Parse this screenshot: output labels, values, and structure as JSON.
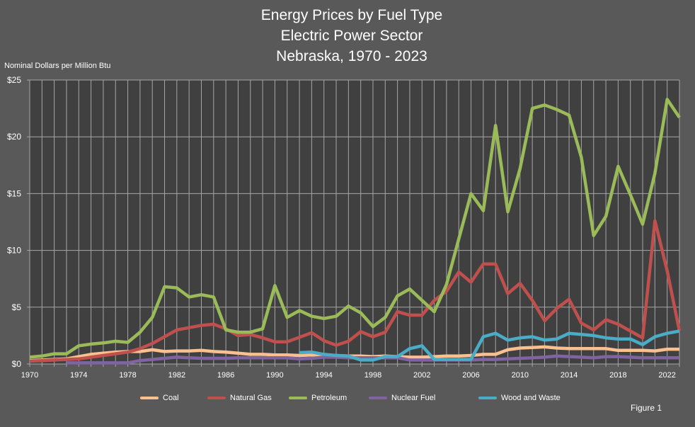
{
  "chart_data": {
    "type": "line",
    "title": [
      "Energy Prices by Fuel Type",
      "Electric Power Sector",
      "Nebraska, 1970 - 2023"
    ],
    "ylabel": "Nominal Dollars per Million Btu",
    "xlabel": "",
    "ylim": [
      0,
      25
    ],
    "yticks": [
      0,
      5,
      10,
      15,
      20,
      25
    ],
    "ytick_labels": [
      "$0",
      "$5",
      "$10",
      "$15",
      "$20",
      "$25"
    ],
    "xlim": [
      1970,
      2023
    ],
    "xtick_labels": [
      "1970",
      "1974",
      "1978",
      "1982",
      "1986",
      "1990",
      "1994",
      "1998",
      "2002",
      "2006",
      "2010",
      "2014",
      "2018",
      "2022"
    ],
    "grid": true,
    "legend_placement": "bottom",
    "series": [
      {
        "name": "Coal",
        "color": "#fac090",
        "start": 1970,
        "values": [
          0.3,
          0.35,
          0.4,
          0.45,
          0.65,
          0.85,
          0.95,
          1.05,
          1.1,
          1.1,
          1.25,
          1.1,
          1.15,
          1.15,
          1.2,
          1.1,
          1.05,
          0.95,
          0.85,
          0.85,
          0.8,
          0.8,
          0.75,
          0.8,
          0.75,
          0.75,
          0.7,
          0.7,
          0.65,
          0.7,
          0.65,
          0.6,
          0.6,
          0.65,
          0.7,
          0.7,
          0.75,
          0.85,
          0.85,
          1.25,
          1.4,
          1.45,
          1.5,
          1.4,
          1.35,
          1.35,
          1.35,
          1.35,
          1.2,
          1.2,
          1.2,
          1.15,
          1.3,
          1.3
        ]
      },
      {
        "name": "Natural Gas",
        "color": "#c0504d",
        "start": 1970,
        "values": [
          0.25,
          0.3,
          0.35,
          0.4,
          0.45,
          0.6,
          0.75,
          0.9,
          1.05,
          1.35,
          1.8,
          2.4,
          3.0,
          3.2,
          3.4,
          3.5,
          3.1,
          2.5,
          2.6,
          2.3,
          1.95,
          1.95,
          2.35,
          2.75,
          2.05,
          1.65,
          2.0,
          2.85,
          2.4,
          2.8,
          4.6,
          4.3,
          4.3,
          5.6,
          6.4,
          8.1,
          7.2,
          8.8,
          8.8,
          6.2,
          7.1,
          5.6,
          3.8,
          4.9,
          5.7,
          3.6,
          3.0,
          3.9,
          3.5,
          2.9,
          2.3,
          12.6,
          8.2,
          2.9
        ]
      },
      {
        "name": "Petroleum",
        "color": "#9bbb59",
        "start": 1970,
        "values": [
          0.6,
          0.7,
          0.9,
          0.9,
          1.6,
          1.75,
          1.85,
          2.0,
          1.9,
          2.8,
          4.1,
          6.8,
          6.7,
          5.9,
          6.1,
          5.9,
          3.0,
          2.8,
          2.8,
          3.1,
          6.9,
          4.1,
          4.7,
          4.2,
          4.0,
          4.2,
          5.1,
          4.5,
          3.3,
          4.1,
          6.0,
          6.6,
          5.6,
          4.6,
          7.0,
          11.0,
          15.0,
          13.5,
          21.0,
          13.4,
          17.2,
          22.5,
          22.8,
          22.4,
          21.9,
          18.2,
          11.3,
          13.0,
          17.4,
          14.9,
          12.3,
          16.8,
          23.3,
          21.7
        ]
      },
      {
        "name": "Nuclear Fuel",
        "color": "#8064a2",
        "start": 1973,
        "values": [
          0.1,
          0.1,
          0.1,
          0.1,
          0.1,
          0.1,
          0.3,
          0.4,
          0.5,
          0.6,
          0.55,
          0.5,
          0.5,
          0.5,
          0.55,
          0.55,
          0.55,
          0.55,
          0.55,
          0.45,
          0.5,
          0.6,
          0.6,
          0.55,
          0.55,
          0.55,
          0.55,
          0.55,
          0.35,
          0.35,
          0.35,
          0.35,
          0.35,
          0.35,
          0.4,
          0.4,
          0.45,
          0.5,
          0.55,
          0.6,
          0.7,
          0.65,
          0.6,
          0.55,
          0.65,
          0.65,
          0.6,
          0.55,
          0.55,
          0.55,
          0.55
        ]
      },
      {
        "name": "Wood and Waste",
        "color": "#4bacc6",
        "start": 1992,
        "values": [
          1.0,
          1.05,
          0.85,
          0.75,
          0.7,
          0.35,
          0.35,
          0.65,
          0.65,
          1.35,
          1.6,
          0.4,
          0.4,
          0.4,
          0.4,
          2.4,
          2.7,
          2.1,
          2.3,
          2.4,
          2.1,
          2.2,
          2.7,
          2.6,
          2.5,
          2.3,
          2.2,
          2.2,
          1.7,
          2.4,
          2.7,
          2.9
        ]
      }
    ],
    "annotation": "Figure 1"
  }
}
